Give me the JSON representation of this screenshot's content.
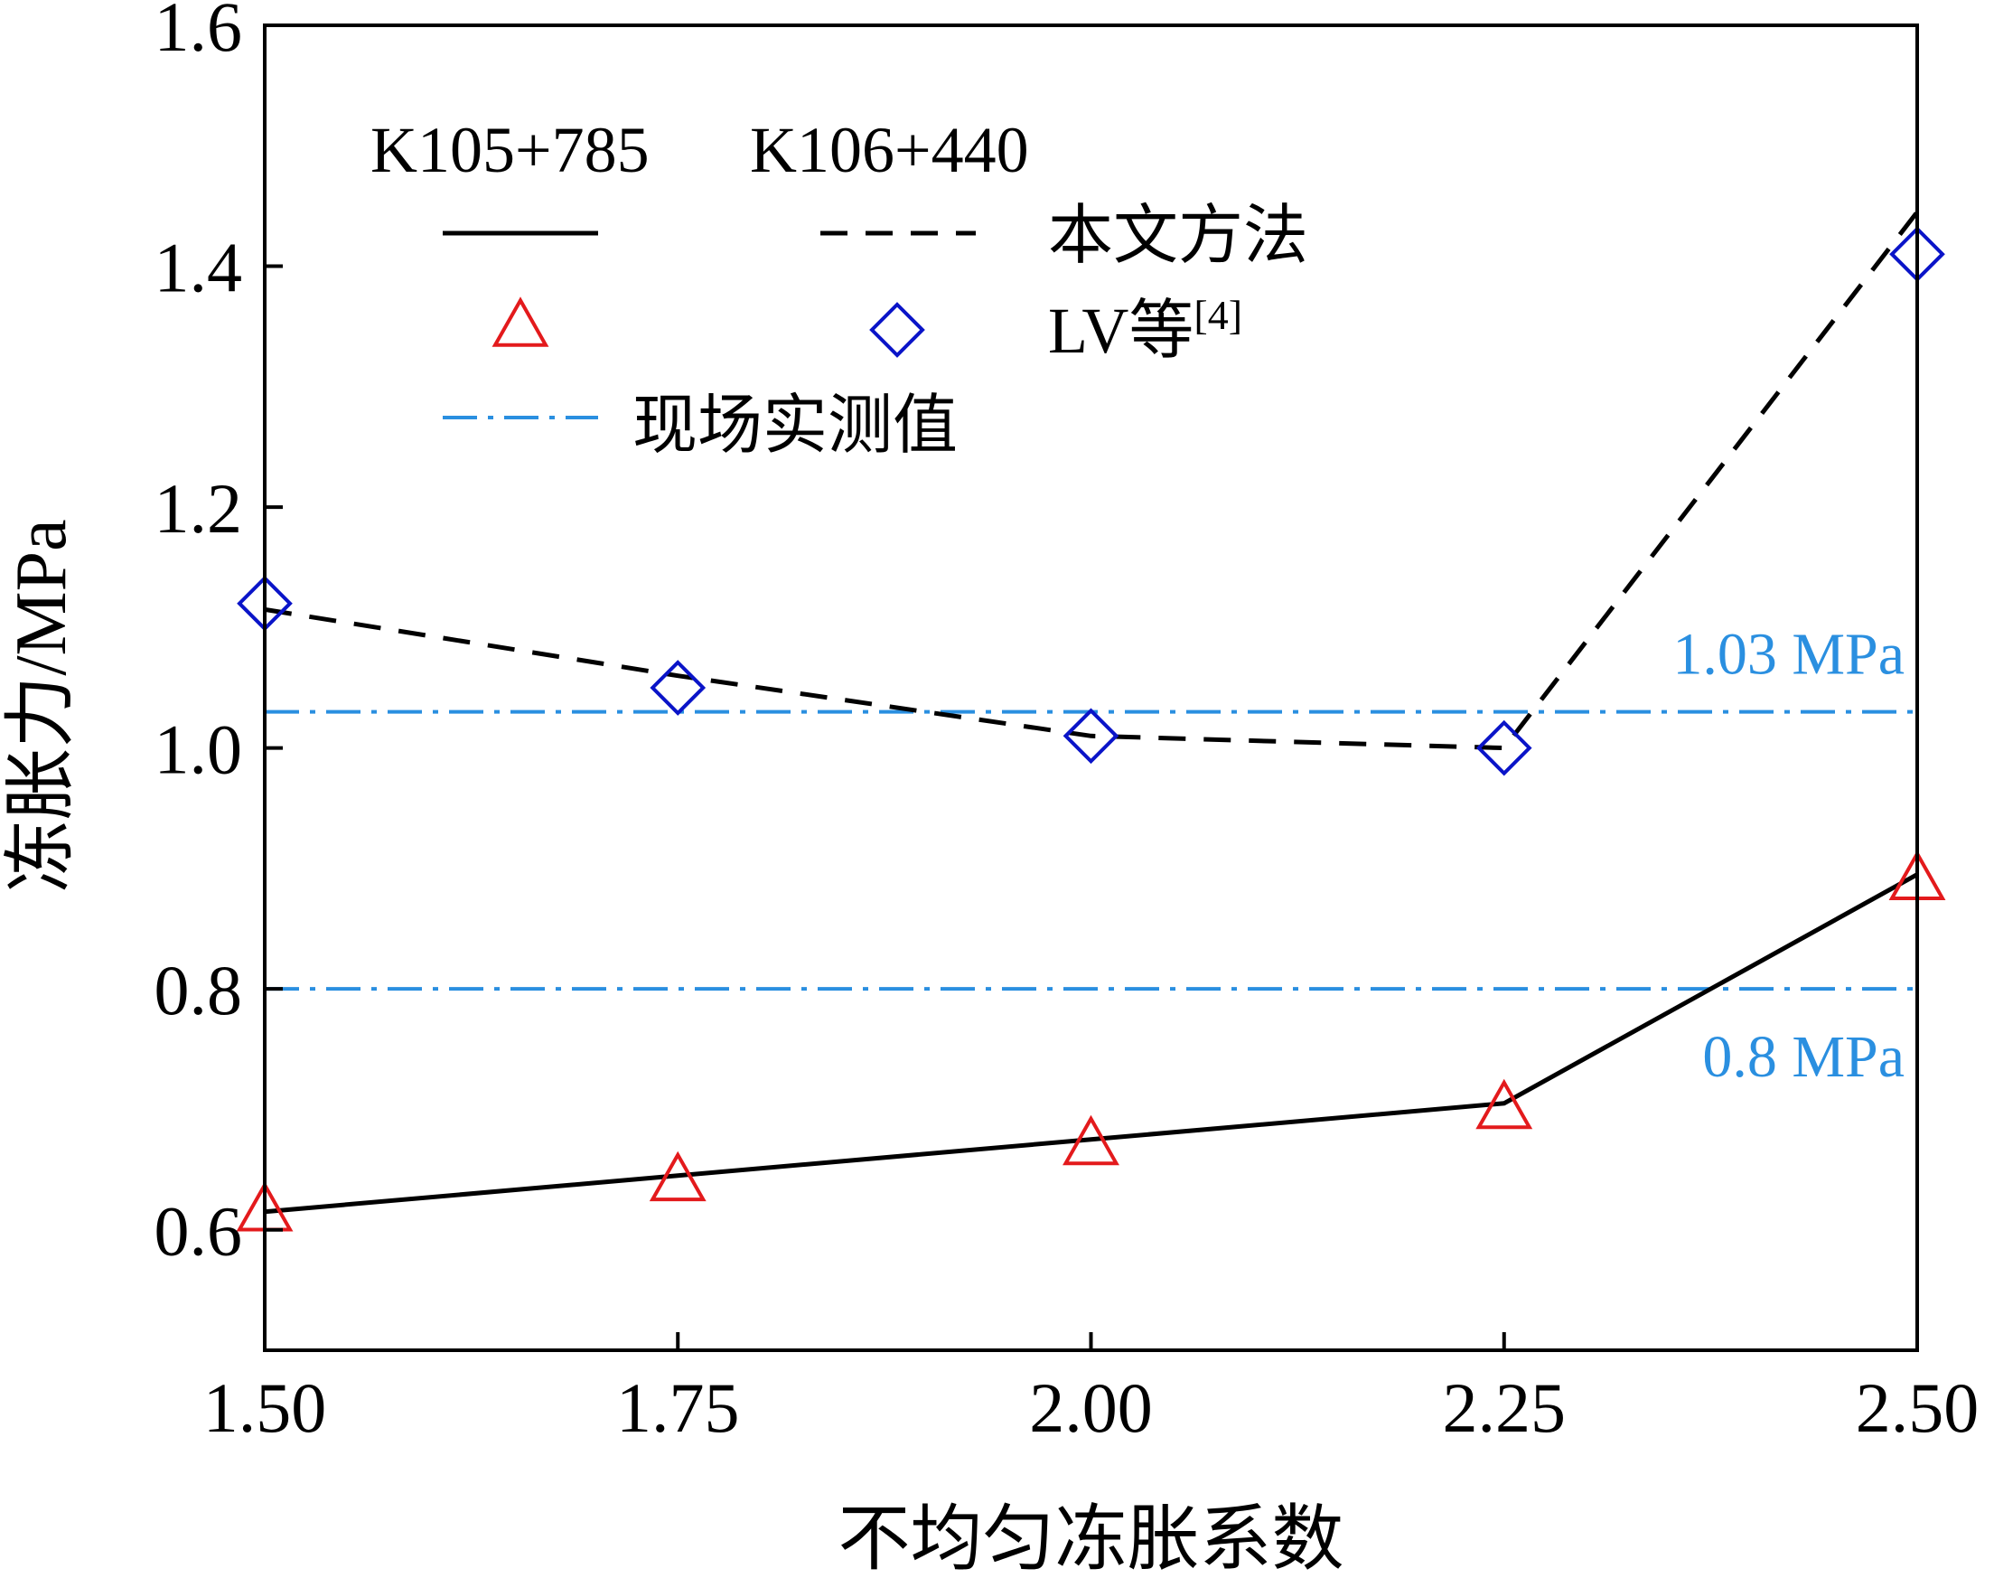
{
  "chart_data": {
    "type": "line",
    "xlabel": "不均匀冻胀系数",
    "ylabel": "冻胀力/MPa",
    "xlim": [
      1.5,
      2.5
    ],
    "ylim": [
      0.5,
      1.6
    ],
    "x_ticks": [
      1.5,
      1.75,
      2.0,
      2.25,
      2.5
    ],
    "x_tick_labels": [
      "1.50",
      "1.75",
      "2.00",
      "2.25",
      "2.50"
    ],
    "y_ticks": [
      0.6,
      0.8,
      1.0,
      1.2,
      1.4,
      1.6
    ],
    "y_tick_labels": [
      "0.6",
      "0.8",
      "1.0",
      "1.2",
      "1.4",
      "1.6"
    ],
    "grid": false,
    "legend": {
      "placement": "top-left",
      "column_headers": [
        "K105+785",
        "K106+440"
      ],
      "rows": [
        {
          "label": "本文方法"
        },
        {
          "label": "LV等",
          "superscript": "[4]"
        },
        {
          "label": "现场实测值"
        }
      ]
    },
    "x": [
      1.5,
      1.75,
      2.0,
      2.25,
      2.5
    ],
    "series": [
      {
        "name": "本文方法",
        "site": "K105+785",
        "style": "solid",
        "color": "#000000",
        "values": [
          0.615,
          0.645,
          0.675,
          0.705,
          0.895
        ]
      },
      {
        "name": "本文方法",
        "site": "K106+440",
        "style": "dashed",
        "color": "#000000",
        "values": [
          1.115,
          1.06,
          1.01,
          1.0,
          1.445
        ]
      },
      {
        "name": "LV等",
        "site": "K105+785",
        "marker": "triangle",
        "color": "#e31a1c",
        "values": [
          0.615,
          0.64,
          0.67,
          0.7,
          0.89
        ]
      },
      {
        "name": "LV等",
        "site": "K106+440",
        "marker": "diamond",
        "color": "#0a14c8",
        "values": [
          1.12,
          1.05,
          1.01,
          1.0,
          1.41
        ]
      }
    ],
    "reference_lines": [
      {
        "name": "现场实测值",
        "value": 1.03,
        "label": "1.03 MPa",
        "color": "#2a8fe0",
        "style": "dashdot"
      },
      {
        "name": "现场实测值",
        "value": 0.8,
        "label": "0.8 MPa",
        "color": "#2a8fe0",
        "style": "dashdot"
      }
    ]
  }
}
